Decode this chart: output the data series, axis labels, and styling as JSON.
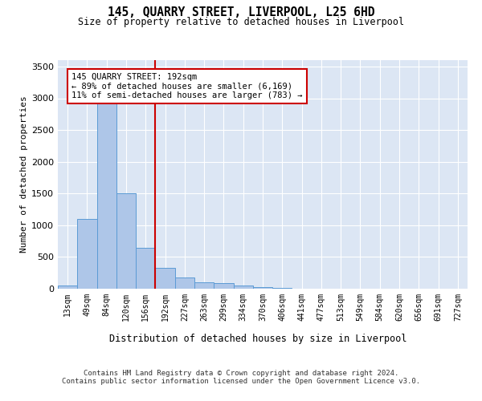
{
  "title": "145, QUARRY STREET, LIVERPOOL, L25 6HD",
  "subtitle": "Size of property relative to detached houses in Liverpool",
  "xlabel": "Distribution of detached houses by size in Liverpool",
  "ylabel": "Number of detached properties",
  "categories": [
    "13sqm",
    "49sqm",
    "84sqm",
    "120sqm",
    "156sqm",
    "192sqm",
    "227sqm",
    "263sqm",
    "299sqm",
    "334sqm",
    "370sqm",
    "406sqm",
    "441sqm",
    "477sqm",
    "513sqm",
    "549sqm",
    "584sqm",
    "620sqm",
    "656sqm",
    "691sqm",
    "727sqm"
  ],
  "values": [
    50,
    1100,
    3000,
    1500,
    650,
    330,
    175,
    95,
    90,
    50,
    30,
    15,
    5,
    3,
    2,
    1,
    0,
    0,
    0,
    0,
    0
  ],
  "bar_color": "#aec6e8",
  "bar_edge_color": "#5b9bd5",
  "property_line_color": "#cc0000",
  "ylim": [
    0,
    3600
  ],
  "yticks": [
    0,
    500,
    1000,
    1500,
    2000,
    2500,
    3000,
    3500
  ],
  "annotation_text": "145 QUARRY STREET: 192sqm\n← 89% of detached houses are smaller (6,169)\n11% of semi-detached houses are larger (783) →",
  "annotation_box_edgecolor": "#cc0000",
  "footer_line1": "Contains HM Land Registry data © Crown copyright and database right 2024.",
  "footer_line2": "Contains public sector information licensed under the Open Government Licence v3.0.",
  "background_color": "#dce6f4",
  "fig_background_color": "#ffffff"
}
